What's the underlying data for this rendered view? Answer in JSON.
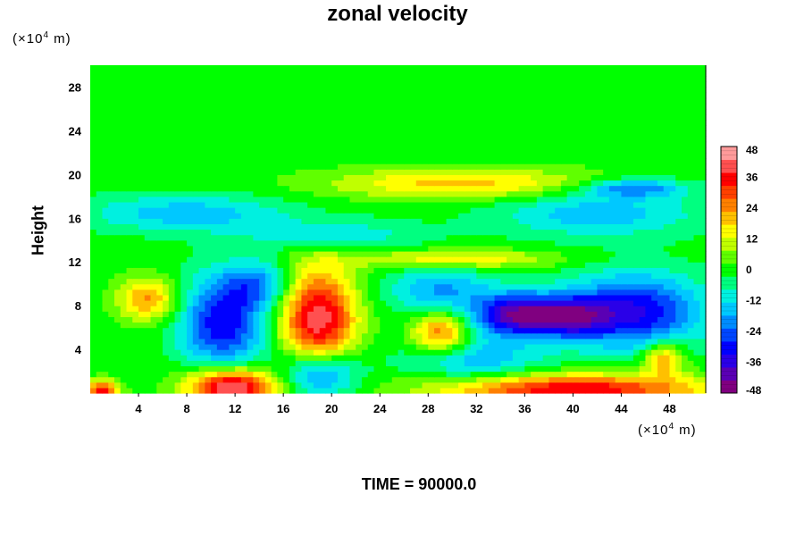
{
  "chart_data": {
    "type": "heatmap",
    "title": "zonal velocity",
    "ylabel": "Height",
    "x_unit_prefix": "(×10",
    "x_unit_exp": "4",
    "x_unit_suffix": " m)",
    "y_unit_prefix": "(×10",
    "y_unit_exp": "4",
    "y_unit_suffix": " m)",
    "footer": "TIME = 90000.0",
    "xlim": [
      0,
      51
    ],
    "ylim": [
      0,
      30
    ],
    "x_ticks": [
      4,
      8,
      12,
      16,
      20,
      24,
      28,
      32,
      36,
      40,
      44,
      48
    ],
    "y_ticks": [
      4,
      8,
      12,
      16,
      20,
      24,
      28
    ],
    "colorbar": {
      "min": -48,
      "max": 48,
      "ticks": [
        48,
        36,
        24,
        12,
        0,
        -12,
        -24,
        -36,
        -48
      ],
      "colors": [
        "#800080",
        "#5a00b4",
        "#2a00e8",
        "#0000ff",
        "#0046ff",
        "#008cff",
        "#00c8ff",
        "#00f0e0",
        "#00ff80",
        "#00ff00",
        "#60ff00",
        "#c0ff00",
        "#ffff00",
        "#ffc000",
        "#ff8000",
        "#ff4000",
        "#ff0000",
        "#ff5050",
        "#ff9a9a"
      ]
    },
    "features": [
      {
        "x": 18.9,
        "y": 6.8,
        "value": 42,
        "sx": 2.2,
        "sy": 3.3
      },
      {
        "x": 11.7,
        "y": 0.6,
        "value": 48,
        "sx": 2.6,
        "sy": 1.2
      },
      {
        "x": 40.0,
        "y": 0.4,
        "value": 38,
        "sx": 8.0,
        "sy": 1.0
      },
      {
        "x": 1.0,
        "y": 0.2,
        "value": 34,
        "sx": 1.0,
        "sy": 0.7
      },
      {
        "x": 29.0,
        "y": 5.5,
        "value": 28,
        "sx": 1.6,
        "sy": 1.3
      },
      {
        "x": 4.8,
        "y": 8.6,
        "value": 24,
        "sx": 1.8,
        "sy": 1.4
      },
      {
        "x": 47.5,
        "y": 3.2,
        "value": 24,
        "sx": 1.2,
        "sy": 1.1
      },
      {
        "x": 30.0,
        "y": 12.3,
        "value": 18,
        "sx": 6.0,
        "sy": 0.6
      },
      {
        "x": 31.0,
        "y": 19.2,
        "value": 20,
        "sx": 8.0,
        "sy": 1.0
      },
      {
        "x": 11.0,
        "y": 6.5,
        "value": -32,
        "sx": 2.5,
        "sy": 3.0
      },
      {
        "x": 19.0,
        "y": 1.8,
        "value": -30,
        "sx": 2.2,
        "sy": 1.6
      },
      {
        "x": 35.5,
        "y": 7.2,
        "value": -42,
        "sx": 2.6,
        "sy": 1.4
      },
      {
        "x": 45.0,
        "y": 7.5,
        "value": -34,
        "sx": 4.0,
        "sy": 2.4
      },
      {
        "x": 40.0,
        "y": 7.0,
        "value": -26,
        "sx": 2.0,
        "sy": 1.2
      },
      {
        "x": 29.0,
        "y": 9.5,
        "value": -18,
        "sx": 3.0,
        "sy": 1.5
      },
      {
        "x": 32.0,
        "y": 3.0,
        "value": -16,
        "sx": 4.0,
        "sy": 1.5
      },
      {
        "x": 14.0,
        "y": 10.0,
        "value": -18,
        "sx": 2.0,
        "sy": 1.5
      },
      {
        "x": 8.0,
        "y": 16.5,
        "value": -16,
        "sx": 6.0,
        "sy": 1.2
      },
      {
        "x": 42.0,
        "y": 16.5,
        "value": -16,
        "sx": 6.0,
        "sy": 1.5
      },
      {
        "x": 20.0,
        "y": 14.5,
        "value": -12,
        "sx": 5.0,
        "sy": 1.0
      },
      {
        "x": 45.0,
        "y": 18.8,
        "value": -22,
        "sx": 3.0,
        "sy": 0.6
      }
    ]
  }
}
